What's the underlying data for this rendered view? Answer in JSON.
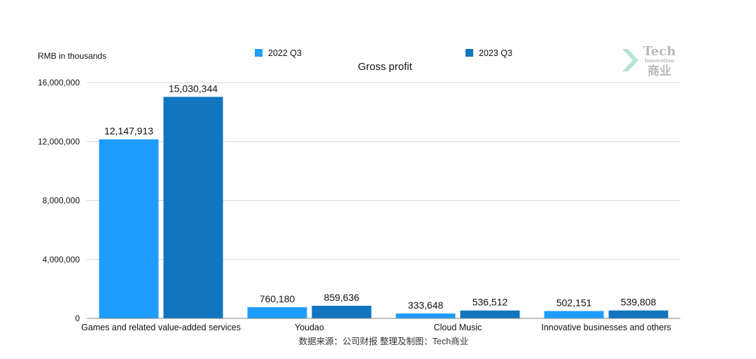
{
  "chart_data": {
    "type": "bar",
    "title": "Gross profit",
    "unit_label": "RMB in thousands",
    "categories": [
      "Games and related value-added services",
      "Youdao",
      "Cloud Music",
      "Innovative businesses and others"
    ],
    "series": [
      {
        "name": "2022 Q3",
        "color": "#1e9dff",
        "values": [
          12147913,
          760180,
          333648,
          502151
        ],
        "labels": [
          "12,147,913",
          "760,180",
          "333,648",
          "502,151"
        ]
      },
      {
        "name": "2023 Q3",
        "color": "#1175c0",
        "values": [
          15030344,
          859636,
          536512,
          539808
        ],
        "labels": [
          "15,030,344",
          "859,636",
          "536,512",
          "539,808"
        ]
      }
    ],
    "ylim": [
      0,
      16000000
    ],
    "yticks": [
      0,
      4000000,
      8000000,
      12000000,
      16000000
    ],
    "ytick_labels": [
      "0",
      "4,000,000",
      "8,000,000",
      "12,000,000",
      "16,000,000"
    ],
    "grid": true,
    "legend_position": "top",
    "source_note": "数据来源：公司财报 整理及制图：Tech商业"
  },
  "logo": {
    "text_main": "Tech",
    "text_sub": "Innovation",
    "text_cn": "商业",
    "accent_color": "#a8e0c8"
  }
}
